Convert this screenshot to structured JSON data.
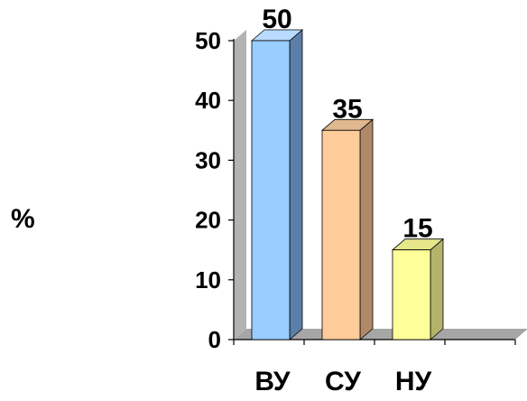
{
  "chart_data": {
    "type": "bar",
    "style": "3d",
    "categories": [
      "ВУ",
      "СУ",
      "НУ"
    ],
    "values": [
      50,
      35,
      15
    ],
    "data_labels": [
      "50",
      "35",
      "15"
    ],
    "yticks": [
      "0",
      "10",
      "20",
      "30",
      "40",
      "50"
    ],
    "ylabel": "%",
    "ylim": [
      0,
      50
    ],
    "grid": false,
    "colors": {
      "ВУ": {
        "front": "#99ccff",
        "side": "#5b7fa8",
        "top": "#b8dbff"
      },
      "СУ": {
        "front": "#ffcc99",
        "side": "#b08968",
        "top": "#e0b88f"
      },
      "НУ": {
        "front": "#ffff99",
        "side": "#b3b36b",
        "top": "#e6e68a"
      },
      "wall": "#b3b3b3",
      "floor": "#a6a6a6"
    }
  }
}
